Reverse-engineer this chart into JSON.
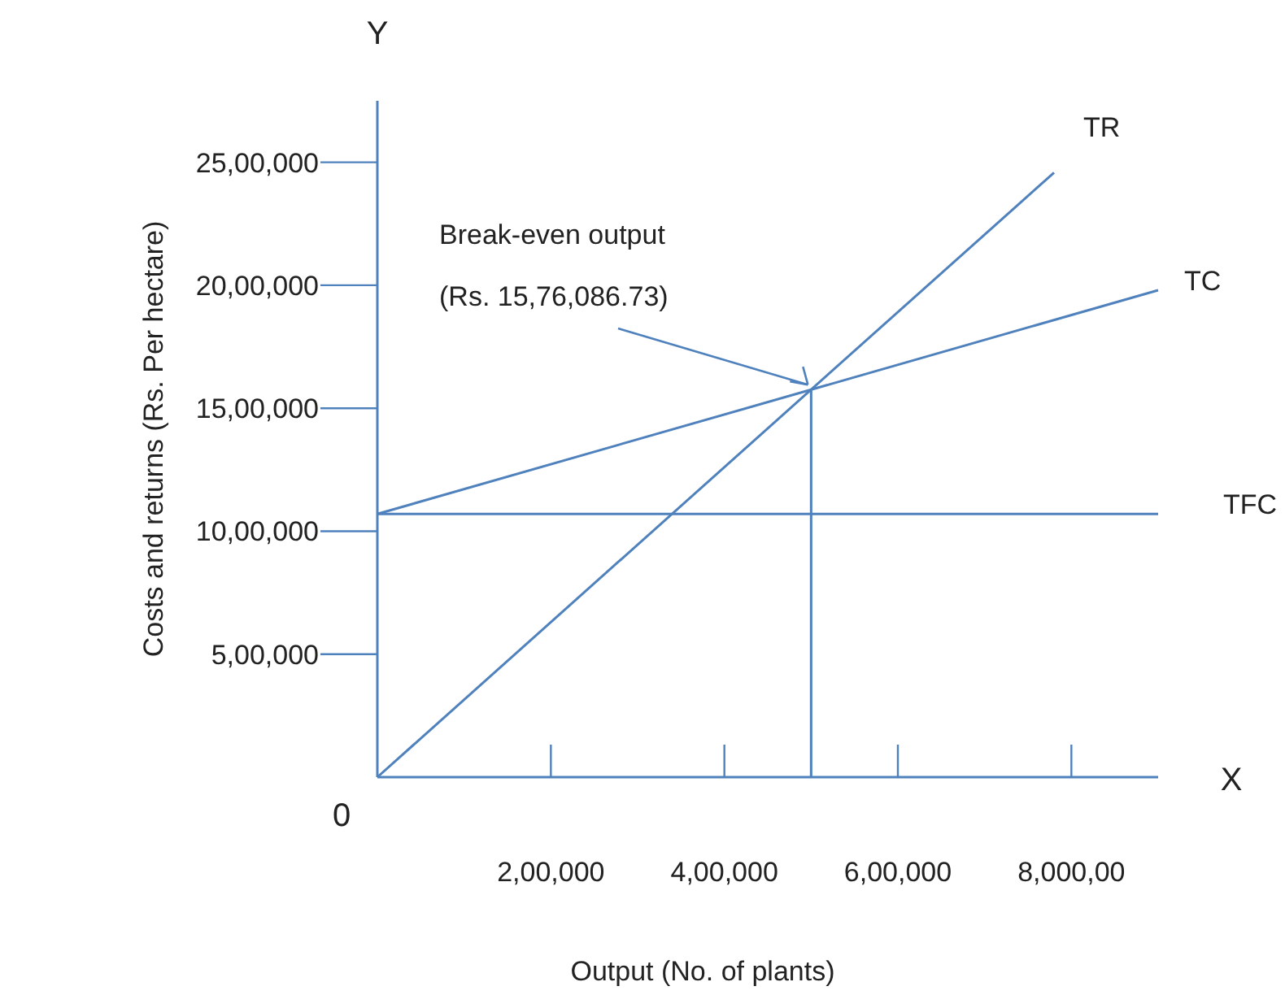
{
  "chart_data": {
    "type": "line",
    "xlabel": "Output (No. of plants)",
    "ylabel": "Costs and returns (Rs. Per hectare)",
    "xlim": [
      0,
      900000
    ],
    "ylim": [
      0,
      2750000
    ],
    "xticks": [
      {
        "value": 200000,
        "label": "2,00,000"
      },
      {
        "value": 400000,
        "label": "4,00,000"
      },
      {
        "value": 600000,
        "label": "6,00,000"
      },
      {
        "value": 800000,
        "label": "8,000,00"
      }
    ],
    "yticks": [
      {
        "value": 500000,
        "label": "5,00,000"
      },
      {
        "value": 1000000,
        "label": "10,00,000"
      },
      {
        "value": 1500000,
        "label": "15,00,000"
      },
      {
        "value": 2000000,
        "label": "20,00,000"
      },
      {
        "value": 2500000,
        "label": "25,00,000"
      }
    ],
    "series": [
      {
        "name": "TR",
        "color": "#4f81bd",
        "x": [
          0,
          780000
        ],
        "values": [
          0,
          2458000
        ]
      },
      {
        "name": "TC",
        "color": "#4f81bd",
        "x": [
          0,
          900000
        ],
        "values": [
          1070000,
          1980000
        ]
      },
      {
        "name": "TFC",
        "color": "#4f81bd",
        "x": [
          0,
          900000
        ],
        "values": [
          1070000,
          1070000
        ]
      },
      {
        "color": "#4f81bd",
        "x": [
          500000,
          500000
        ],
        "values": [
          0,
          1576000
        ]
      }
    ],
    "annotations": [
      "Y",
      "X",
      "0",
      {
        "text": "Break-even output\n(Rs. 15,76,086.73)",
        "x": 500000,
        "y": 1576000
      }
    ],
    "grid": false,
    "marker": "none",
    "line_style": "solid"
  }
}
